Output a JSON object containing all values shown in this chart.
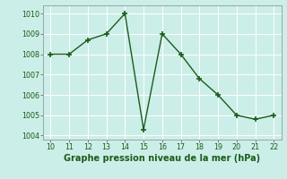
{
  "x": [
    10,
    11,
    12,
    13,
    14,
    15,
    16,
    17,
    18,
    19,
    20,
    21,
    22
  ],
  "y": [
    1008.0,
    1008.0,
    1008.7,
    1009.0,
    1010.0,
    1004.3,
    1009.0,
    1008.0,
    1006.8,
    1006.0,
    1005.0,
    1004.8,
    1005.0
  ],
  "line_color": "#1a5c1a",
  "marker": "+",
  "marker_size": 4,
  "linewidth": 1.0,
  "xlabel": "Graphe pression niveau de la mer (hPa)",
  "ylim": [
    1003.8,
    1010.4
  ],
  "xlim": [
    9.6,
    22.4
  ],
  "yticks": [
    1004,
    1005,
    1006,
    1007,
    1008,
    1009,
    1010
  ],
  "xticks": [
    10,
    11,
    12,
    13,
    14,
    15,
    16,
    17,
    18,
    19,
    20,
    21,
    22
  ],
  "bg_color": "#cceee8",
  "grid_color": "#ffffff",
  "tick_label_fontsize": 5.8,
  "xlabel_fontsize": 7.0,
  "xlabel_fontweight": "bold",
  "xlabel_color": "#1a5c1a"
}
